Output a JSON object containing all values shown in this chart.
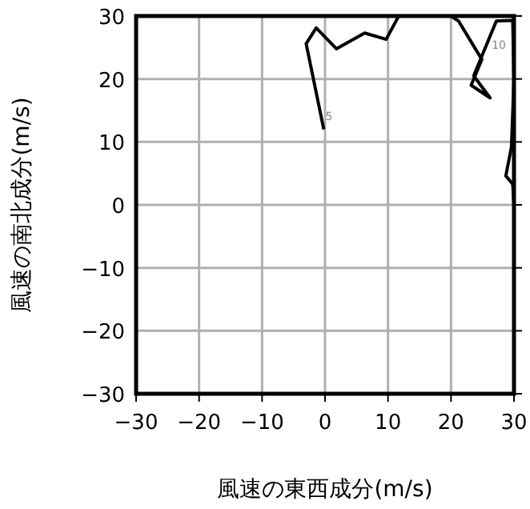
{
  "chart_data": {
    "type": "line",
    "xlabel": "風速の東西成分(m/s)",
    "ylabel": "風速の南北成分(m/s)",
    "x": [
      -0.2,
      -3.0,
      -1.4,
      1.8,
      6.3,
      9.7,
      11.7,
      20.0,
      21.2,
      23.8,
      24.9,
      23.2,
      26.2,
      23.6,
      27.2,
      29.8,
      30.0,
      29.6,
      28.7,
      29.8,
      30.0
    ],
    "series": [
      {
        "color": "#000000",
        "values": [
          12.0,
          25.6,
          28.1,
          24.8,
          27.3,
          26.3,
          30.0,
          30.0,
          29.2,
          24.9,
          23.1,
          19.0,
          17.0,
          20.5,
          29.2,
          29.3,
          20.0,
          9.2,
          4.6,
          3.3,
          0.0
        ]
      }
    ],
    "xlim": [
      -30,
      30
    ],
    "ylim": [
      -30,
      30
    ],
    "xticks": [
      -30,
      -20,
      -10,
      0,
      10,
      20,
      30
    ],
    "yticks": [
      -30,
      -20,
      -10,
      0,
      10,
      20,
      30
    ],
    "grid": true,
    "marker": "none",
    "line_style": "solid",
    "annotations": [
      {
        "text": "5",
        "x": -0.7,
        "y": 14.3
      },
      {
        "text": "10",
        "x": 25.7,
        "y": 25.5
      }
    ]
  }
}
